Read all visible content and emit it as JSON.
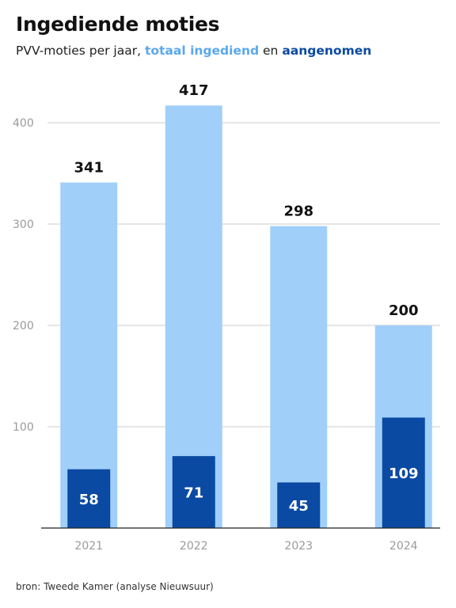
{
  "header": {
    "title": "Ingediende moties",
    "subtitle_prefix": "PVV-moties per jaar,",
    "subtitle_total": "totaal ingediend",
    "subtitle_mid": "en",
    "subtitle_accepted": "aangenomen"
  },
  "footer": {
    "source": "bron: Tweede Kamer (analyse Nieuwsuur)"
  },
  "colors": {
    "total": "#a0cffa",
    "accepted": "#0b4aa2",
    "grid": "#cccccc",
    "axis": "#222222",
    "tick_text": "#9a9a9a",
    "label_dark": "#111111",
    "label_light": "#ffffff"
  },
  "chart_data": {
    "type": "bar",
    "categories": [
      "2021",
      "2022",
      "2023",
      "2024"
    ],
    "series": [
      {
        "name": "totaal ingediend",
        "values": [
          341,
          417,
          298,
          200
        ]
      },
      {
        "name": "aangenomen",
        "values": [
          58,
          71,
          45,
          109
        ]
      }
    ],
    "ylim": [
      0,
      400
    ],
    "yticks": [
      100,
      200,
      300,
      400
    ],
    "title": "Ingediende moties",
    "subtitle": "PVV-moties per jaar, totaal ingediend en aangenomen",
    "xlabel": "",
    "ylabel": "",
    "grid": true,
    "legend": "inline in subtitle"
  }
}
